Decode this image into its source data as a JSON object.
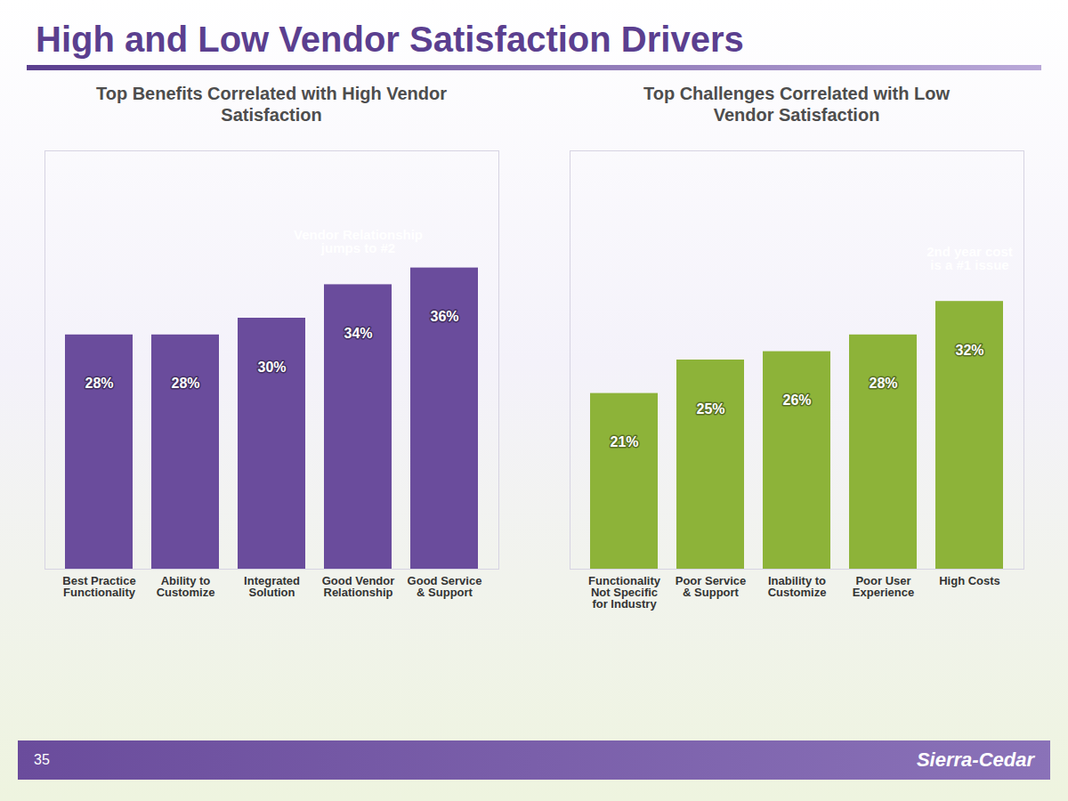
{
  "title": "High and Low Vendor Satisfaction Drivers",
  "page_number": "35",
  "logo_text": "Sierra-Cedar",
  "chart_data": [
    {
      "type": "bar",
      "title": "Top Benefits Correlated with High Vendor Satisfaction",
      "categories": [
        "Best Practice Functionality",
        "Ability to Customize",
        "Integrated Solution",
        "Good Vendor Relationship",
        "Good Service & Support"
      ],
      "values": [
        28,
        28,
        30,
        34,
        36
      ],
      "value_labels": [
        "28%",
        "28%",
        "30%",
        "34%",
        "36%"
      ],
      "data_labels": true,
      "color": "#6a4c9c",
      "ylim": [
        0,
        50
      ],
      "tick_labels": "x",
      "annotations": [
        {
          "text": "Vendor Relationship jumps to #2",
          "category": "Good Vendor Relationship"
        }
      ]
    },
    {
      "type": "bar",
      "title": "Top Challenges Correlated with Low Vendor Satisfaction",
      "categories": [
        "Functionality Not Specific for Industry",
        "Poor Service & Support",
        "Inability to Customize",
        "Poor User Experience",
        "High Costs"
      ],
      "values": [
        21,
        25,
        26,
        28,
        32
      ],
      "value_labels": [
        "21%",
        "25%",
        "26%",
        "28%",
        "32%"
      ],
      "data_labels": true,
      "color": "#8db339",
      "ylim": [
        0,
        50
      ],
      "tick_labels": "x",
      "annotations": [
        {
          "text": "2nd year cost is a #1 issue",
          "category": "High Costs"
        }
      ]
    }
  ]
}
